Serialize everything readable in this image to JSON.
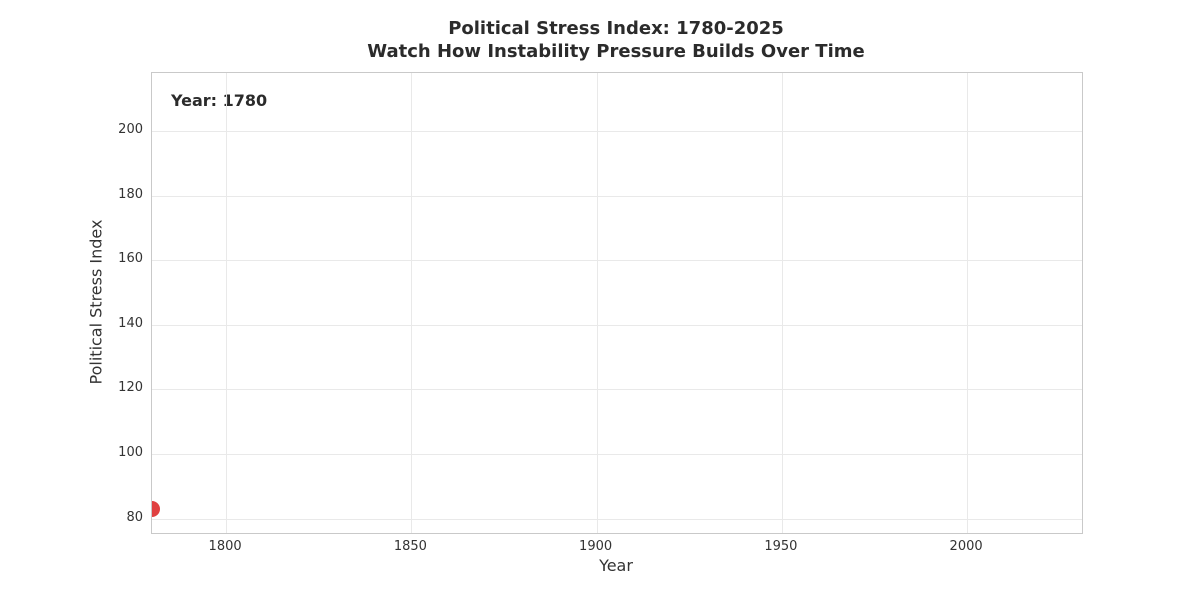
{
  "title_line1": "Political Stress Index: 1780-2025",
  "title_line2": "Watch How Instability Pressure Builds Over Time",
  "annotation": "Year: 1780",
  "colors": {
    "point": "#e04141",
    "grid": "#e9e9e9",
    "spine": "#c9c9c9",
    "text": "#2b2b2b"
  },
  "chart_data": {
    "type": "scatter",
    "title": "Political Stress Index: 1780-2025\nWatch How Instability Pressure Builds Over Time",
    "xlabel": "Year",
    "ylabel": "Political Stress Index",
    "xlim": [
      1780,
      2031
    ],
    "ylim": [
      75.5,
      218
    ],
    "x_ticks": [
      1800,
      1850,
      1900,
      1950,
      2000
    ],
    "y_ticks": [
      80,
      100,
      120,
      140,
      160,
      180,
      200
    ],
    "grid": true,
    "legend": "none",
    "annotation": "Year: 1780",
    "series": [
      {
        "name": "Political Stress Index",
        "points": [
          {
            "x": 1780,
            "y": 83
          }
        ],
        "color": "#e04141",
        "marker_radius_px": 8
      }
    ]
  }
}
